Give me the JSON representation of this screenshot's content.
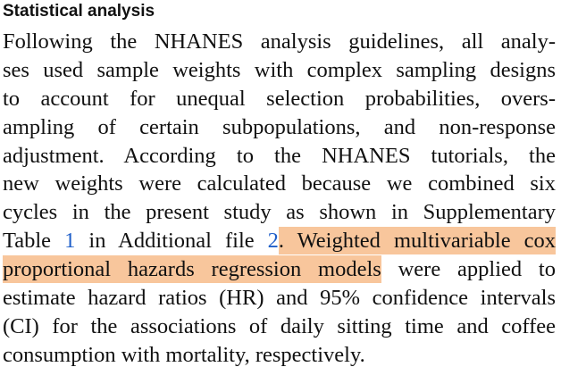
{
  "heading": "Statistical analysis",
  "paragraph": {
    "lines": [
      [
        {
          "text": "Following the NHANES analysis guidelines, all analy-"
        }
      ],
      [
        {
          "text": "ses used sample weights with complex sampling designs"
        }
      ],
      [
        {
          "text": "to account for unequal selection probabilities, overs-"
        }
      ],
      [
        {
          "text": "ampling of certain subpopulations, and non-response"
        }
      ],
      [
        {
          "text": "adjustment. According to the NHANES tutorials, the"
        }
      ],
      [
        {
          "text": "new weights were calculated because we combined six"
        }
      ],
      [
        {
          "text": "cycles in the present study as shown in Supplementary"
        }
      ],
      [
        {
          "text": "Table "
        },
        {
          "text": "1",
          "kind": "link"
        },
        {
          "text": " in Additional file "
        },
        {
          "text": "2",
          "kind": "link"
        },
        {
          "text": ". Weighted multivariable cox",
          "kind": "highlight"
        }
      ],
      [
        {
          "text": "proportional hazards regression models",
          "kind": "highlight"
        },
        {
          "text": " were applied to"
        }
      ],
      [
        {
          "text": "estimate hazard ratios (HR) and 95% confidence intervals"
        }
      ],
      [
        {
          "text": "(CI) for the associations of daily sitting time and coffee"
        }
      ],
      [
        {
          "text": "consumption with mortality, respectively."
        }
      ]
    ]
  }
}
